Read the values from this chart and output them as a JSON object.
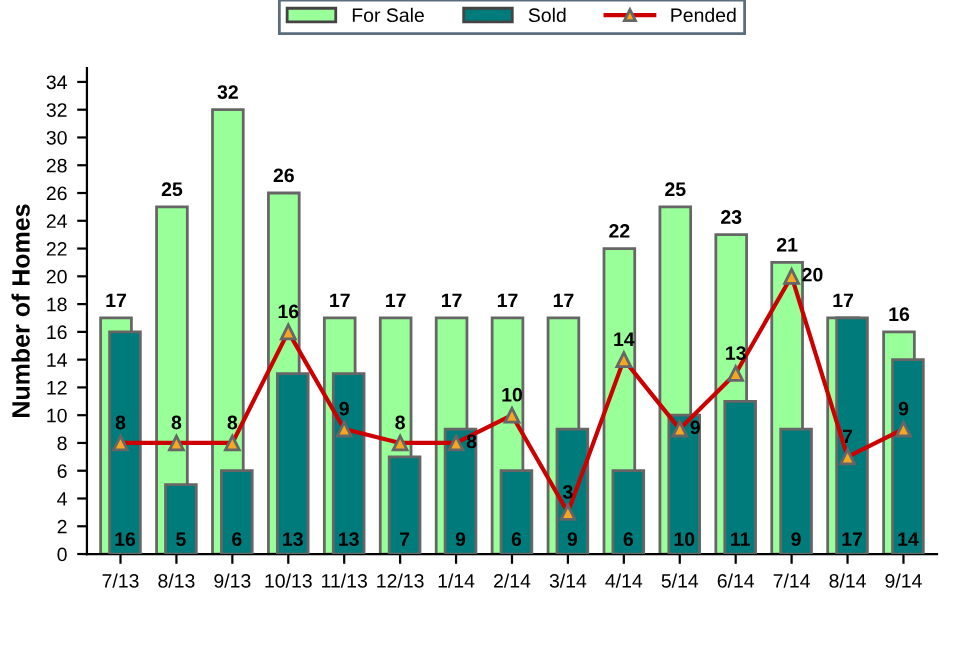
{
  "chart_data": {
    "type": "bar",
    "ylabel": "Number of Homes",
    "categories": [
      "7/13",
      "8/13",
      "9/13",
      "10/13",
      "11/13",
      "12/13",
      "1/14",
      "2/14",
      "3/14",
      "4/14",
      "5/14",
      "6/14",
      "7/14",
      "8/14",
      "9/14"
    ],
    "series": [
      {
        "name": "For Sale",
        "color": "#99ff99",
        "values": [
          17,
          25,
          32,
          26,
          17,
          17,
          17,
          17,
          17,
          22,
          25,
          23,
          21,
          17,
          16
        ]
      },
      {
        "name": "Sold",
        "color": "#007b7b",
        "values": [
          16,
          5,
          6,
          13,
          13,
          7,
          9,
          6,
          9,
          6,
          10,
          11,
          9,
          17,
          14
        ]
      },
      {
        "name": "Pended",
        "type": "line",
        "color": "#cc0000",
        "marker": "triangle",
        "values": [
          8,
          8,
          8,
          16,
          9,
          8,
          8,
          10,
          3,
          14,
          9,
          13,
          20,
          7,
          9
        ]
      }
    ],
    "ylim": [
      0,
      35
    ],
    "yticks": [
      0,
      2,
      4,
      6,
      8,
      10,
      12,
      14,
      16,
      18,
      20,
      22,
      24,
      26,
      28,
      30,
      32,
      34
    ],
    "data_labels": true,
    "legend": "top",
    "grid": false
  }
}
